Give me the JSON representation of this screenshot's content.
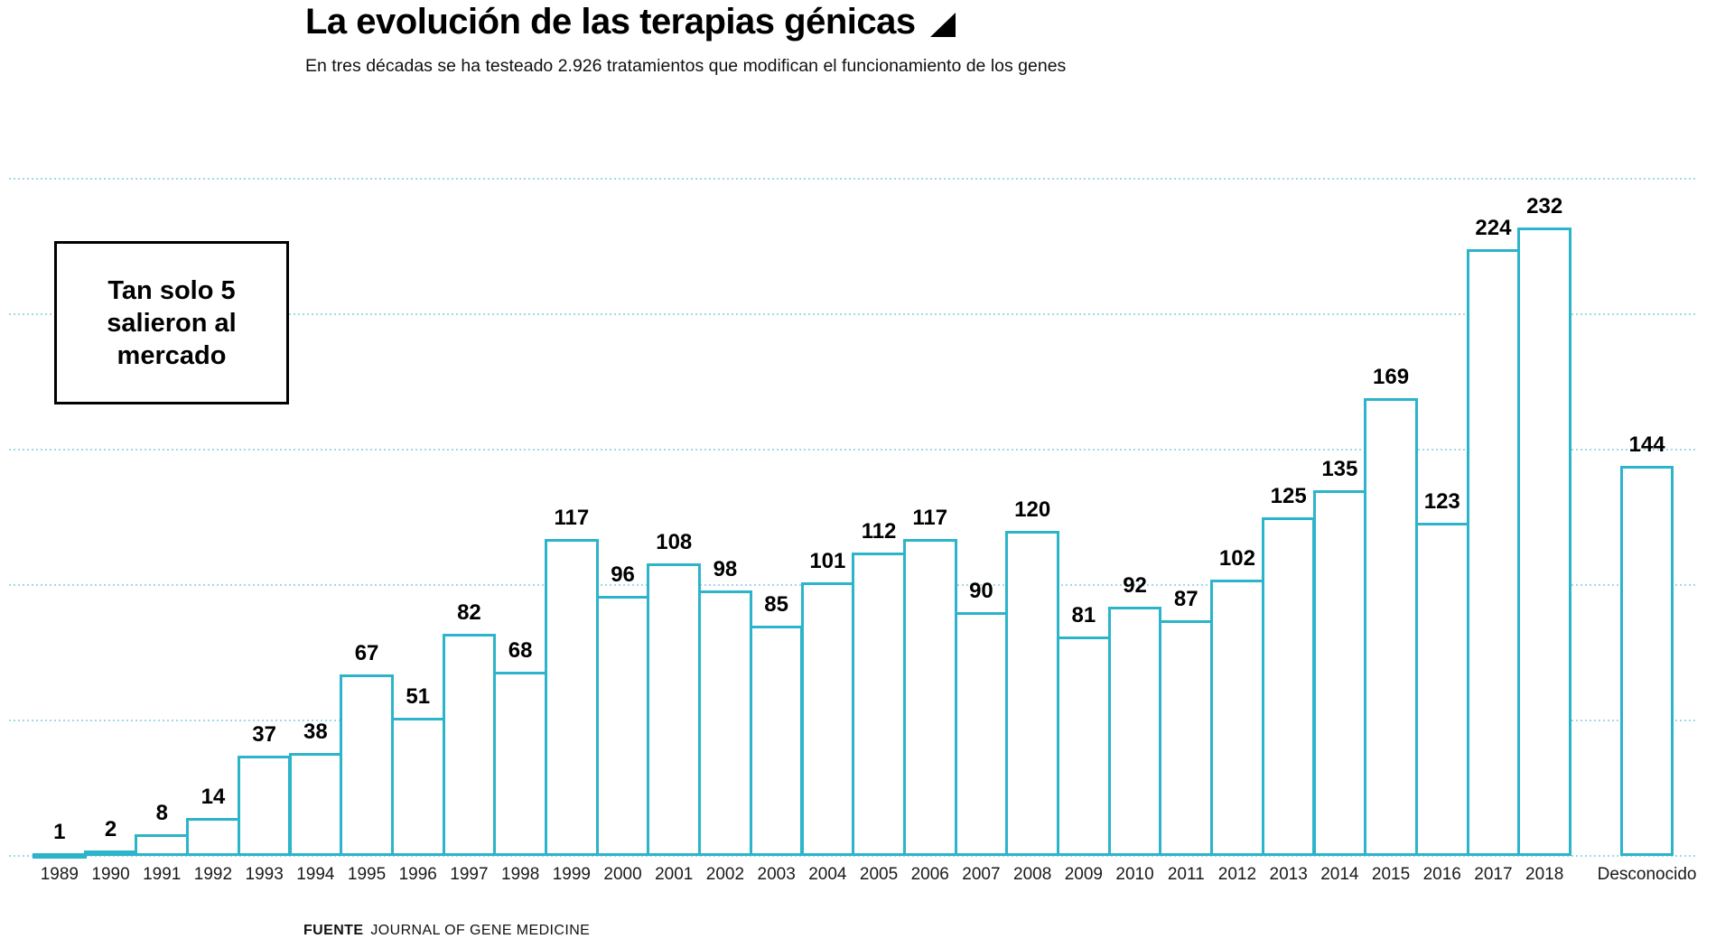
{
  "header": {
    "title": "La evolución de las terapias génicas",
    "subtitle": "En tres décadas se ha testeado 2.926 tratamientos que modifican el funcionamiento de los genes"
  },
  "annotation": {
    "line1": "Tan solo 5",
    "line2": "salieron al",
    "line3": "mercado"
  },
  "footer": {
    "source_label": "FUENTE",
    "source_name": "JOURNAL OF GENE MEDICINE"
  },
  "chart_data": {
    "type": "bar",
    "title": "La evolución de las terapias génicas",
    "subtitle": "En tres décadas se ha testeado 2.926 tratamientos que modifican el funcionamiento de los genes",
    "categories": [
      "1989",
      "1990",
      "1991",
      "1992",
      "1993",
      "1994",
      "1995",
      "1996",
      "1997",
      "1998",
      "1999",
      "2000",
      "2001",
      "2002",
      "2003",
      "2004",
      "2005",
      "2006",
      "2007",
      "2008",
      "2009",
      "2010",
      "2011",
      "2012",
      "2013",
      "2014",
      "2015",
      "2016",
      "2017",
      "2018",
      "Desconocido"
    ],
    "values": [
      1,
      2,
      8,
      14,
      37,
      38,
      67,
      51,
      82,
      68,
      117,
      96,
      108,
      98,
      85,
      101,
      112,
      117,
      90,
      120,
      81,
      92,
      87,
      102,
      125,
      135,
      169,
      123,
      224,
      232,
      144
    ],
    "total_shown_in_subtitle": "2.926",
    "xlabel": "",
    "ylabel": "",
    "ylim": [
      0,
      250
    ],
    "gridline_values": [
      0,
      50,
      100,
      150,
      200,
      250
    ],
    "grid": "horizontal-dotted",
    "legend": "none",
    "data_labels": "above-bars",
    "colors": {
      "bar_border": "#2cb4ca",
      "bar_fill": "#ffffff",
      "gridline": "#9fd9e6",
      "text": "#000000"
    },
    "annotation_text": "Tan solo 5 salieron al mercado"
  }
}
